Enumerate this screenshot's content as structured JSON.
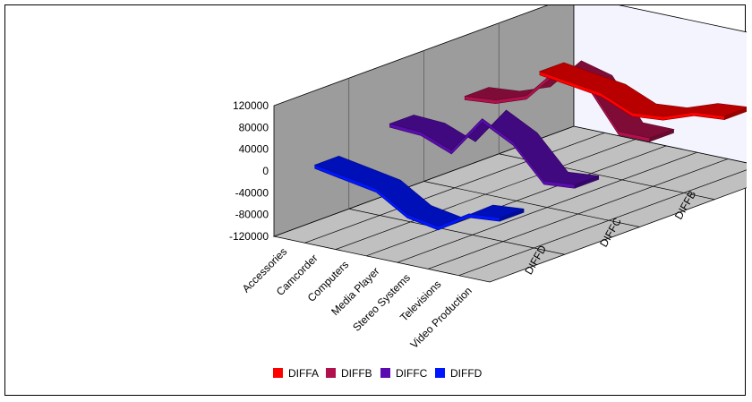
{
  "chart_data": {
    "type": "area",
    "view": "3d",
    "categories": [
      "Accessories",
      "Camcorder",
      "Computers",
      "Media Player",
      "Stereo Systems",
      "Televisions",
      "Video Production"
    ],
    "series": [
      {
        "name": "DIFFA",
        "color": "#ff0000",
        "values": [
          20000,
          12000,
          4000,
          -20000,
          -15000,
          5000,
          10000
        ]
      },
      {
        "name": "DIFFB",
        "color": "#b0104c",
        "values": [
          25000,
          30000,
          50000,
          110000,
          95000,
          20000,
          20000
        ]
      },
      {
        "name": "DIFFC",
        "color": "#5a0cb0",
        "values": [
          25000,
          22000,
          0,
          70000,
          40000,
          -20000,
          -15000
        ]
      },
      {
        "name": "DIFFD",
        "color": "#0016ff",
        "values": [
          0,
          -10000,
          -20000,
          -55000,
          -65000,
          -30000,
          -25000
        ]
      }
    ],
    "y_ticks": [
      "120000",
      "80000",
      "40000",
      "0",
      "-40000",
      "-80000",
      "-120000"
    ],
    "ylim": [
      -120000,
      120000
    ],
    "legend_position": "bottom",
    "grid": true
  }
}
